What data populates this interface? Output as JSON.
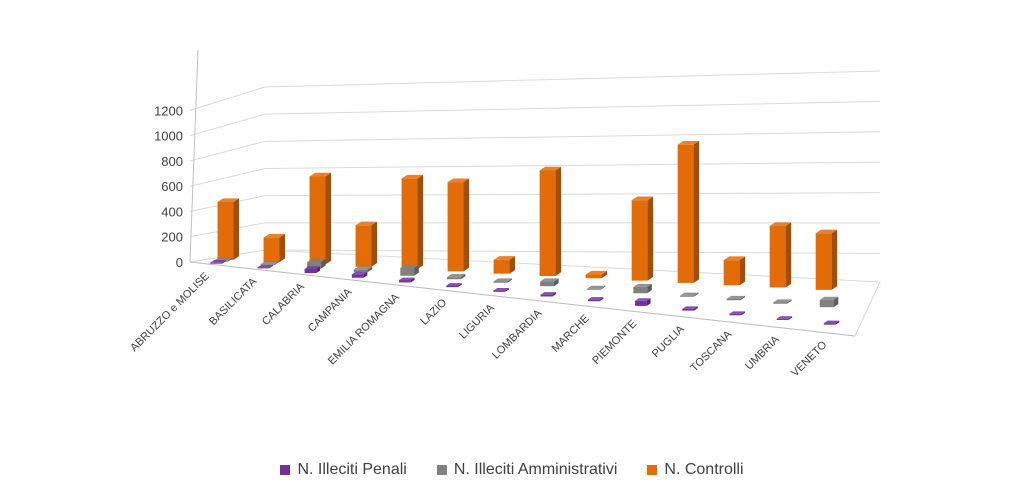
{
  "chart_data": {
    "type": "bar",
    "title": "",
    "xlabel": "",
    "ylabel": "",
    "ylim": [
      0,
      1200
    ],
    "yticks": [
      0,
      200,
      400,
      600,
      800,
      1000,
      1200
    ],
    "categories": [
      "ABRUZZO e MOLISE",
      "BASILICATA",
      "CALABRIA",
      "CAMPANIA",
      "EMILIA ROMAGNA",
      "LAZIO",
      "LIGURIA",
      "LOMBARDIA",
      "MARCHE",
      "PIEMONTE",
      "PUGLIA",
      "TOSCANA",
      "UMBRIA",
      "VENETO"
    ],
    "series": [
      {
        "name": "N. Illeciti Penali",
        "color": "#7030a0",
        "values": [
          12,
          10,
          50,
          40,
          28,
          18,
          15,
          22,
          18,
          60,
          20,
          16,
          14,
          18
        ]
      },
      {
        "name": "N. Illeciti Amministrativi",
        "color": "#808080",
        "values": [
          10,
          10,
          65,
          25,
          75,
          20,
          12,
          45,
          8,
          60,
          10,
          12,
          12,
          70
        ]
      },
      {
        "name": "N. Controlli",
        "color": "#e36c09",
        "values": [
          460,
          195,
          700,
          330,
          720,
          710,
          110,
          840,
          30,
          640,
          1100,
          200,
          490,
          450
        ]
      }
    ],
    "legend_position": "bottom",
    "grid": true
  }
}
